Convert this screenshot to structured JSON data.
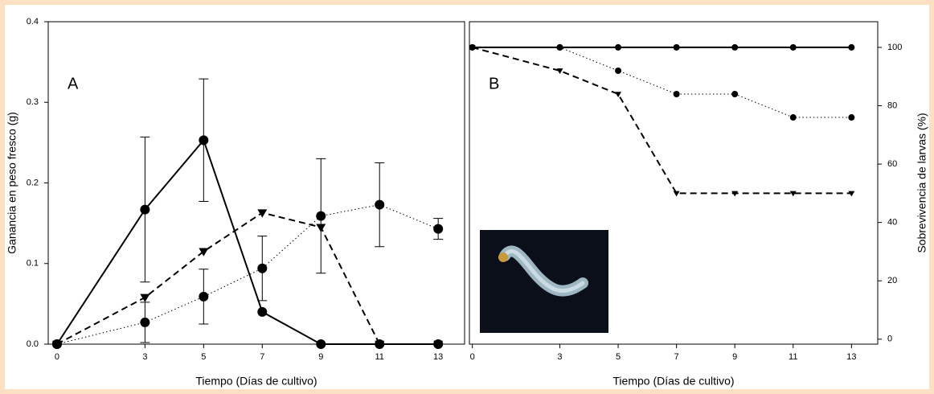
{
  "chart_data": [
    {
      "type": "line",
      "annotation": "A",
      "y_label": "Ganancia en peso fresco (g)",
      "x_label": "Tiempo (Días de cultivo)",
      "y_side": "left",
      "x": [
        0,
        3,
        5,
        7,
        9,
        11,
        13
      ],
      "xlim": [
        -0.3,
        13.9
      ],
      "xticks": [
        0,
        3,
        5,
        7,
        9,
        11,
        13
      ],
      "ylim": [
        0,
        0.4
      ],
      "yticks": [
        {
          "value": 0,
          "label": "0.0"
        },
        0.1,
        0.2,
        0.3,
        0.4
      ],
      "series": [
        {
          "color": "#000000",
          "line_style": "solid",
          "marker": "circle",
          "values": [
            0,
            0.167,
            0.253,
            0.04,
            0,
            0,
            0
          ],
          "errors": [
            null,
            0.09,
            0.076,
            null,
            null,
            null,
            null
          ]
        },
        {
          "color": "#000000",
          "line_style": "dashed",
          "marker": "triangle",
          "values": [
            0,
            0.058,
            0.115,
            0.163,
            0.145,
            0,
            0
          ]
        },
        {
          "color": "#000000",
          "line_style": "dotted",
          "marker": "circle",
          "values": [
            0,
            0.027,
            0.059,
            0.094,
            0.159,
            0.173,
            0.143
          ],
          "errors": [
            null,
            0.025,
            0.034,
            0.04,
            0.071,
            0.052,
            0.013
          ]
        }
      ]
    },
    {
      "type": "line",
      "annotation": "B",
      "y_label": "Sobrevivencia de larvas (%)",
      "x_label": "Tiempo (Días de cultivo)",
      "y_side": "right",
      "x": [
        0,
        3,
        5,
        7,
        9,
        11,
        13
      ],
      "xlim": [
        -0.1,
        13.9
      ],
      "xticks": [
        0,
        3,
        5,
        7,
        9,
        11,
        13
      ],
      "ylim": [
        -1.7,
        108.8
      ],
      "yticks": [
        0,
        20,
        40,
        60,
        80,
        100
      ],
      "series": [
        {
          "color": "#000000",
          "line_style": "solid",
          "marker": "circle-small",
          "values": [
            100,
            100,
            100,
            100,
            100,
            100,
            100
          ]
        },
        {
          "color": "#000000",
          "line_style": "dotted",
          "marker": "circle-small",
          "values": [
            100,
            100,
            92,
            84,
            84,
            76,
            76
          ]
        },
        {
          "color": "#000000",
          "line_style": "dashed",
          "marker": "triangle-small",
          "values": [
            100,
            92,
            84,
            50,
            50,
            50,
            50
          ]
        }
      ]
    }
  ]
}
